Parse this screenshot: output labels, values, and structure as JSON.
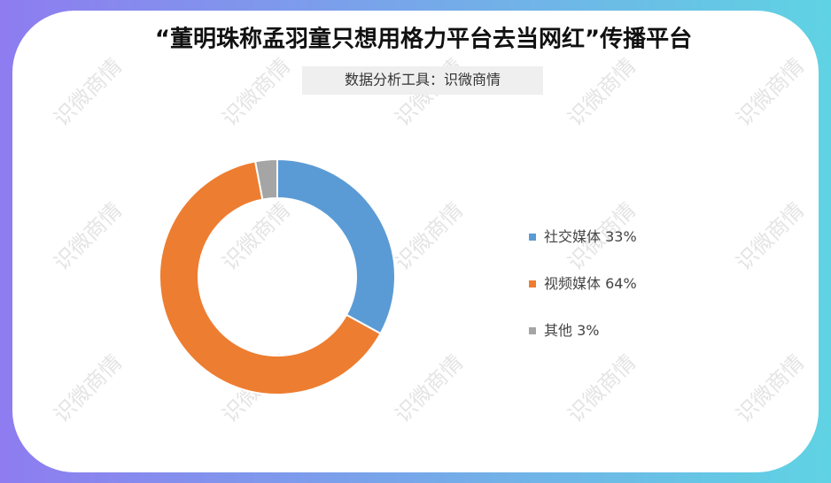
{
  "chart_data": {
    "type": "donut",
    "title": "“董明珠称孟羽童只想用格力平台去当网红”传播平台",
    "subtitle": "数据分析工具：识微商情",
    "watermark": "识微商情",
    "categories": [
      "社交媒体",
      "视频媒体",
      "其他"
    ],
    "values": [
      33,
      64,
      3
    ],
    "value_labels": [
      "33%",
      "64%",
      "3%"
    ],
    "colors": [
      "#5b9bd5",
      "#ed7d31",
      "#a5a5a5"
    ],
    "legend": "right"
  }
}
